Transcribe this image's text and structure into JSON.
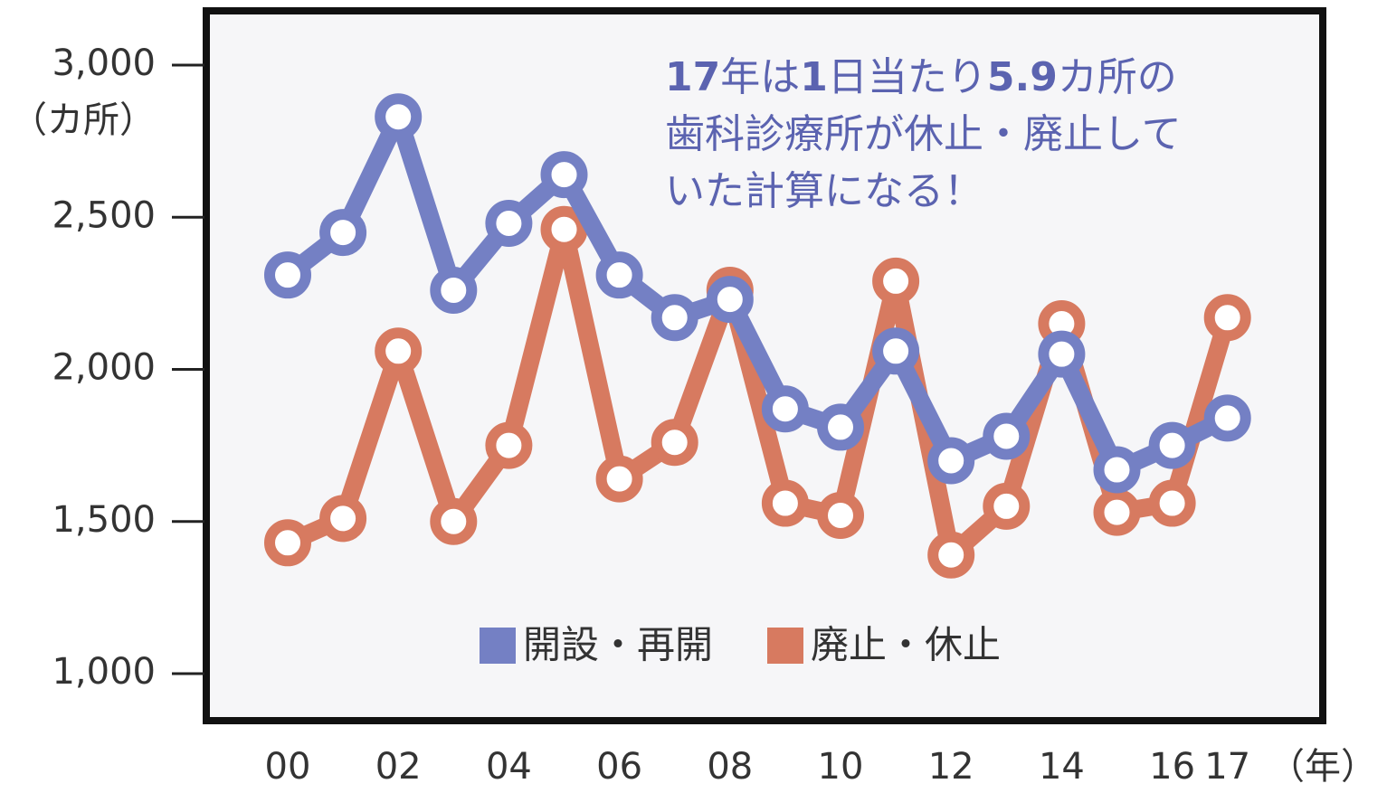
{
  "chart_data": {
    "type": "line",
    "annotation": [
      "17年は1日当たり5.9カ所の",
      "歯科診療所が休止・廃止して",
      "いた計算になる！"
    ],
    "y_unit": "（カ所）",
    "x_unit": "（年）",
    "categories": [
      "00",
      null,
      "02",
      null,
      "04",
      null,
      "06",
      null,
      "08",
      null,
      "10",
      null,
      "12",
      null,
      "14",
      null,
      "16",
      "17"
    ],
    "series": [
      {
        "name": "開設・再開",
        "color": "#7480c4",
        "values": [
          2310,
          2450,
          2830,
          2260,
          2480,
          2640,
          2310,
          2170,
          2230,
          1870,
          1810,
          2060,
          1700,
          1780,
          2050,
          1670,
          1750,
          1840
        ]
      },
      {
        "name": "廃止・休止",
        "color": "#d77a60",
        "values": [
          1430,
          1510,
          2060,
          1500,
          1750,
          2460,
          1640,
          1760,
          2260,
          1560,
          1520,
          2290,
          1390,
          1550,
          2150,
          1530,
          1560,
          2170
        ]
      }
    ],
    "ylim": [
      1000,
      3000
    ],
    "yticks": [
      {
        "value": 1000,
        "label": "1,000"
      },
      {
        "value": 1500,
        "label": "1,500"
      },
      {
        "value": 2000,
        "label": "2,000"
      },
      {
        "value": 2500,
        "label": "2,500"
      },
      {
        "value": 3000,
        "label": "3,000"
      }
    ],
    "legend": "bottom-center"
  }
}
